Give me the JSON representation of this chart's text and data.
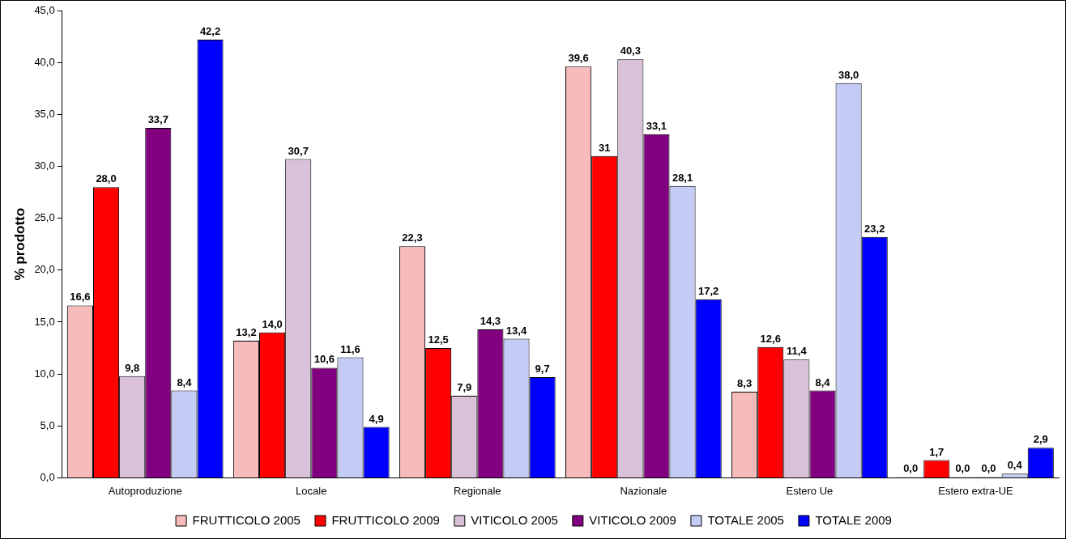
{
  "chart_data": {
    "type": "bar",
    "ylabel": "% prodotto",
    "categories": [
      "Autoproduzione",
      "Locale",
      "Regionale",
      "Nazionale",
      "Estero Ue",
      "Estero extra-UE"
    ],
    "series": [
      {
        "name": "FRUTTICOLO 2005",
        "color": "#f6bcbc",
        "values": [
          16.6,
          13.2,
          22.3,
          39.6,
          8.3,
          0.0
        ],
        "value_labels": [
          "16,6",
          "13,2",
          "22,3",
          "39,6",
          "8,3",
          "0,0"
        ]
      },
      {
        "name": "FRUTTICOLO 2009",
        "color": "#ff0000",
        "values": [
          28.0,
          14.0,
          12.5,
          31,
          12.6,
          1.7
        ],
        "value_labels": [
          "28,0",
          "14,0",
          "12,5",
          "31",
          "12,6",
          "1,7"
        ]
      },
      {
        "name": "VITICOLO 2005",
        "color": "#d9c2d9",
        "values": [
          9.8,
          30.7,
          7.9,
          40.3,
          11.4,
          0.0
        ],
        "value_labels": [
          "9,8",
          "30,7",
          "7,9",
          "40,3",
          "11,4",
          "0,0"
        ]
      },
      {
        "name": "VITICOLO 2009",
        "color": "#800080",
        "values": [
          33.7,
          10.6,
          14.3,
          33.1,
          8.4,
          0.0
        ],
        "value_labels": [
          "33,7",
          "10,6",
          "14,3",
          "33,1",
          "8,4",
          "0,0"
        ]
      },
      {
        "name": "TOTALE 2005",
        "color": "#c4ccf6",
        "values": [
          8.4,
          11.6,
          13.4,
          28.1,
          38.0,
          0.4
        ],
        "value_labels": [
          "8,4",
          "11,6",
          "13,4",
          "28,1",
          "38,0",
          "0,4"
        ]
      },
      {
        "name": "TOTALE 2009",
        "color": "#0000ff",
        "values": [
          42.2,
          4.9,
          9.7,
          17.2,
          23.2,
          2.9
        ],
        "value_labels": [
          "42,2",
          "4,9",
          "9,7",
          "17,2",
          "23,2",
          "2,9"
        ]
      }
    ],
    "ylim": [
      0,
      45
    ],
    "yticks": [
      {
        "value": 0,
        "label": "0,0"
      },
      {
        "value": 5,
        "label": "5,0"
      },
      {
        "value": 10,
        "label": "10,0"
      },
      {
        "value": 15,
        "label": "15,0"
      },
      {
        "value": 20,
        "label": "20,0"
      },
      {
        "value": 25,
        "label": "25,0"
      },
      {
        "value": 30,
        "label": "30,0"
      },
      {
        "value": 35,
        "label": "35,0"
      },
      {
        "value": 40,
        "label": "40,0"
      },
      {
        "value": 45,
        "label": "45,0"
      }
    ],
    "grid": false,
    "legend": "bottom"
  }
}
